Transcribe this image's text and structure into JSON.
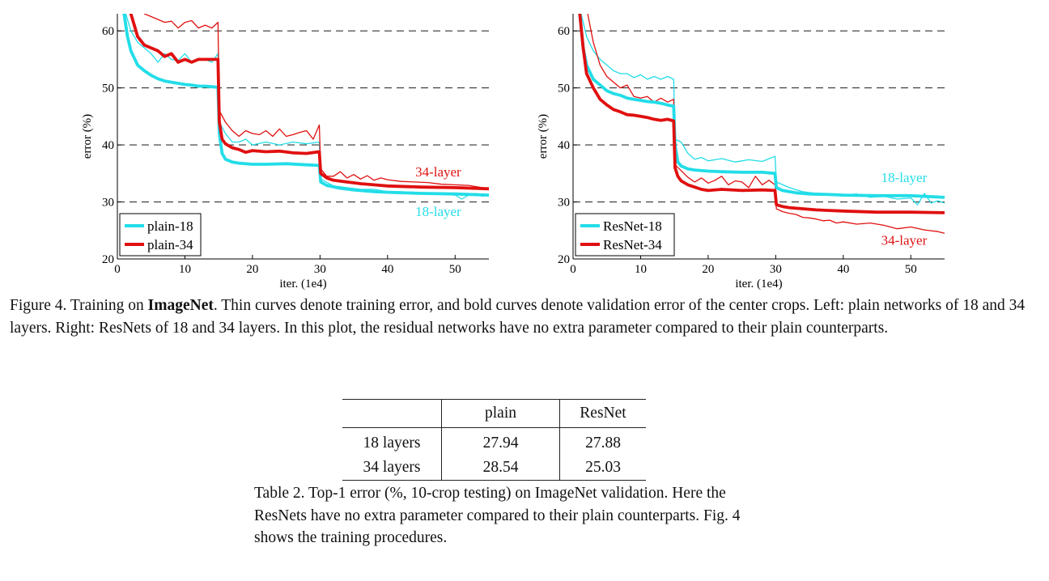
{
  "chart_data": [
    {
      "type": "line",
      "xlabel": "iter. (1e4)",
      "ylabel": "error (%)",
      "xlim": [
        0,
        55
      ],
      "ylim": [
        20,
        63
      ],
      "xticks": [
        0,
        10,
        20,
        30,
        40,
        50
      ],
      "yticks": [
        20,
        30,
        40,
        50,
        60
      ],
      "grid": "dashed horizontal at 30, 40, 50, 60",
      "legend_position": "bottom-left",
      "legend": [
        "plain-18",
        "plain-34"
      ],
      "annotations": [
        {
          "text": "34-layer",
          "x": 47.5,
          "y": 34.5,
          "color": "#e01010"
        },
        {
          "text": "18-layer",
          "x": 47.5,
          "y": 27.5,
          "color": "#22dde8"
        }
      ],
      "series": [
        {
          "name": "plain-18",
          "color": "#22dde8",
          "style": "thick",
          "x": [
            1,
            1.5,
            2,
            3,
            4,
            5,
            6,
            7,
            8,
            9,
            10,
            11,
            12,
            13,
            14,
            14.9,
            15.1,
            15.5,
            16,
            17,
            18,
            20,
            22,
            25,
            28,
            29.9,
            30.1,
            31,
            33,
            35,
            38,
            40,
            45,
            50,
            55
          ],
          "y": [
            63,
            59,
            56.5,
            54,
            53,
            52.2,
            51.6,
            51.2,
            51,
            50.8,
            50.6,
            50.5,
            50.3,
            50.3,
            50.2,
            50.1,
            42,
            38.5,
            37.5,
            37,
            36.8,
            36.6,
            36.6,
            36.7,
            36.5,
            36.4,
            33.5,
            32.9,
            32.4,
            32.1,
            31.8,
            31.7,
            31.5,
            31.4,
            31.2
          ]
        },
        {
          "name": "plain-18 (train)",
          "color": "#22dde8",
          "style": "thin",
          "x": [
            1,
            2,
            3,
            4,
            5,
            6,
            7,
            8,
            9,
            10,
            11,
            12,
            13,
            14,
            14.9,
            15.1,
            16,
            17,
            18,
            19,
            20,
            22,
            24,
            26,
            28,
            29.9,
            30.1,
            32,
            34,
            36,
            38,
            40,
            42,
            44,
            46,
            48,
            50,
            51,
            52,
            53,
            54,
            55
          ],
          "y": [
            64,
            60,
            58,
            57,
            56,
            54.5,
            56,
            55,
            54.8,
            56,
            54.5,
            55,
            55,
            54.5,
            56,
            44,
            42,
            40.5,
            40.5,
            41,
            40,
            40.5,
            40,
            40.5,
            40.2,
            40.5,
            34,
            32.8,
            32.5,
            32.2,
            32.2,
            31.8,
            31.8,
            31.7,
            31.5,
            31.3,
            31.2,
            30.5,
            31.2,
            31.5,
            31.0,
            31.2
          ]
        },
        {
          "name": "plain-34",
          "color": "#e01010",
          "style": "thick",
          "x": [
            2,
            2.5,
            3,
            4,
            5,
            6,
            7,
            8,
            9,
            10,
            11,
            12,
            13,
            14,
            14.9,
            15.1,
            15.5,
            16,
            17,
            18,
            19,
            20,
            22,
            24,
            26,
            28,
            29.9,
            30.1,
            31,
            32,
            34,
            36,
            38,
            40,
            45,
            50,
            55
          ],
          "y": [
            63,
            61,
            59,
            57.5,
            57,
            56.5,
            55.5,
            56,
            54.5,
            55,
            54.5,
            55,
            55,
            55,
            55,
            44,
            41,
            40.2,
            39.5,
            39.2,
            38.7,
            39,
            38.8,
            38.9,
            38.6,
            38.5,
            38.8,
            35,
            34.2,
            33.8,
            33.5,
            33.2,
            33.0,
            32.8,
            32.6,
            32.5,
            32.3
          ]
        },
        {
          "name": "plain-34 (train)",
          "color": "#e01010",
          "style": "thin",
          "x": [
            4,
            5,
            6,
            7,
            8,
            9,
            10,
            11,
            12,
            13,
            14,
            14.9,
            15.1,
            16,
            17,
            18,
            19,
            20,
            21,
            22,
            23,
            24,
            25,
            26,
            27,
            28,
            29,
            29.9,
            30.1,
            31,
            32,
            33,
            34,
            35,
            36,
            37,
            38,
            39,
            40,
            42,
            44,
            46,
            48,
            50,
            52,
            54,
            55
          ],
          "y": [
            63,
            62.5,
            62,
            61.5,
            61.7,
            60.5,
            61.5,
            61.8,
            60.5,
            61,
            60.5,
            61.5,
            46,
            44,
            42.5,
            41.5,
            42.5,
            42,
            41.8,
            42.5,
            41.5,
            42.8,
            41.5,
            41.8,
            42.2,
            42.5,
            41,
            43.5,
            35.8,
            34.5,
            34.5,
            35.3,
            34.2,
            34.8,
            34.0,
            34.6,
            33.8,
            34.2,
            33.9,
            33.6,
            33.5,
            33.4,
            33.1,
            33.0,
            32.9,
            32.5,
            32.3
          ]
        }
      ]
    },
    {
      "type": "line",
      "xlabel": "iter. (1e4)",
      "ylabel": "error (%)",
      "xlim": [
        0,
        55
      ],
      "ylim": [
        20,
        63
      ],
      "xticks": [
        0,
        10,
        20,
        30,
        40,
        50
      ],
      "yticks": [
        20,
        30,
        40,
        50,
        60
      ],
      "grid": "dashed horizontal at 30, 40, 50, 60",
      "legend_position": "bottom-left",
      "legend": [
        "ResNet-18",
        "ResNet-34"
      ],
      "annotations": [
        {
          "text": "18-layer",
          "x": 49,
          "y": 33.5,
          "color": "#22dde8"
        },
        {
          "text": "34-layer",
          "x": 49,
          "y": 22.5,
          "color": "#e01010"
        }
      ],
      "series": [
        {
          "name": "ResNet-18",
          "color": "#22dde8",
          "style": "thick",
          "x": [
            1,
            1.5,
            2,
            3,
            4,
            5,
            6,
            7,
            8,
            9,
            10,
            11,
            12,
            13,
            14,
            14.9,
            15.1,
            15.5,
            16,
            17,
            18,
            20,
            22,
            25,
            28,
            29.9,
            30.1,
            31,
            33,
            35,
            38,
            40,
            45,
            50,
            55
          ],
          "y": [
            63,
            57,
            54,
            51.5,
            50.5,
            49.5,
            49,
            48.7,
            48.2,
            48,
            47.8,
            47.6,
            47.5,
            47.3,
            47,
            46.8,
            40,
            37,
            36.3,
            35.8,
            35.6,
            35.4,
            35.3,
            35.2,
            35.2,
            35.0,
            32.5,
            32.0,
            31.6,
            31.4,
            31.3,
            31.2,
            31.1,
            31.1,
            30.8
          ]
        },
        {
          "name": "ResNet-18 (train)",
          "color": "#22dde8",
          "style": "thin",
          "x": [
            1,
            2,
            3,
            4,
            5,
            6,
            7,
            8,
            9,
            10,
            11,
            12,
            13,
            14,
            14.9,
            15.1,
            16,
            17,
            18,
            19,
            20,
            22,
            24,
            26,
            28,
            29.9,
            30.1,
            32,
            34,
            36,
            38,
            40,
            42,
            44,
            46,
            48,
            50,
            51,
            52,
            53,
            54,
            55
          ],
          "y": [
            64,
            59,
            56.5,
            55,
            54,
            53,
            52.5,
            52.5,
            51.8,
            52.3,
            51.5,
            52,
            51.5,
            52,
            51.5,
            41,
            40.5,
            38.5,
            37.5,
            37.8,
            37.2,
            37.6,
            37.0,
            37.4,
            37.1,
            38.0,
            33.5,
            32.5,
            31.8,
            31.5,
            31.3,
            31.2,
            31.4,
            30.8,
            31.0,
            30.5,
            30.7,
            29.5,
            31.5,
            29.8,
            30.2,
            29.8
          ]
        },
        {
          "name": "ResNet-34",
          "color": "#e01010",
          "style": "thick",
          "x": [
            1,
            1.5,
            2,
            3,
            4,
            5,
            6,
            7,
            8,
            9,
            10,
            11,
            12,
            13,
            14,
            14.9,
            15.1,
            15.5,
            16,
            17,
            18,
            19,
            20,
            22,
            25,
            28,
            29.9,
            30.1,
            31,
            32,
            34,
            36,
            38,
            40,
            45,
            50,
            55
          ],
          "y": [
            63,
            57,
            52.5,
            50,
            48,
            47,
            46.2,
            45.8,
            45.3,
            45.2,
            45,
            44.8,
            44.5,
            44.3,
            44.5,
            44.2,
            36,
            34.5,
            33.7,
            33.0,
            32.6,
            32.2,
            32.0,
            32.2,
            32.0,
            32.1,
            32.0,
            29.5,
            29.2,
            29.0,
            28.8,
            28.6,
            28.5,
            28.4,
            28.2,
            28.2,
            28.1
          ]
        },
        {
          "name": "ResNet-34 (train)",
          "color": "#e01010",
          "style": "thin",
          "x": [
            2,
            3,
            4,
            5,
            6,
            7,
            8,
            9,
            10,
            11,
            12,
            13,
            14,
            14.9,
            15.1,
            16,
            17,
            18,
            19,
            20,
            21,
            22,
            23,
            24,
            25,
            26,
            27,
            28,
            29,
            29.9,
            30.1,
            31,
            32,
            33,
            34,
            35,
            36,
            37,
            38,
            39,
            40,
            42,
            44,
            46,
            48,
            50,
            52,
            54,
            55
          ],
          "y": [
            64,
            58,
            54,
            52,
            51,
            50,
            50.5,
            48.5,
            48.2,
            48.5,
            47.5,
            48.2,
            47.5,
            48,
            36.5,
            35.5,
            34.3,
            33.5,
            34.2,
            33.3,
            33.8,
            34.5,
            33.0,
            33.7,
            33.5,
            32.5,
            34.5,
            33.0,
            33.8,
            33.0,
            28.8,
            28.3,
            28.0,
            27.8,
            27.3,
            27.2,
            27.0,
            26.7,
            26.8,
            26.3,
            26.5,
            26.1,
            26.3,
            25.9,
            25.3,
            25.6,
            25.1,
            24.8,
            24.5
          ]
        }
      ]
    }
  ],
  "figure_caption": {
    "prefix": "Figure 4. Training on ",
    "bold": "ImageNet",
    "rest": ". Thin curves denote training error, and bold curves denote validation error of the center crops. Left: plain networks of 18 and 34 layers. Right: ResNets of 18 and 34 layers. In this plot, the residual networks have no extra parameter compared to their plain counterparts."
  },
  "table": {
    "headers": [
      "",
      "plain",
      "ResNet"
    ],
    "rows": [
      {
        "label": "18 layers",
        "plain": "27.94",
        "resnet": "27.88"
      },
      {
        "label": "34 layers",
        "plain": "28.54",
        "resnet": "25.03"
      }
    ]
  },
  "table_caption": "Table 2. Top-1 error (%, 10-crop testing) on ImageNet validation. Here the ResNets have no extra parameter compared to their plain counterparts. Fig. 4 shows the training procedures."
}
